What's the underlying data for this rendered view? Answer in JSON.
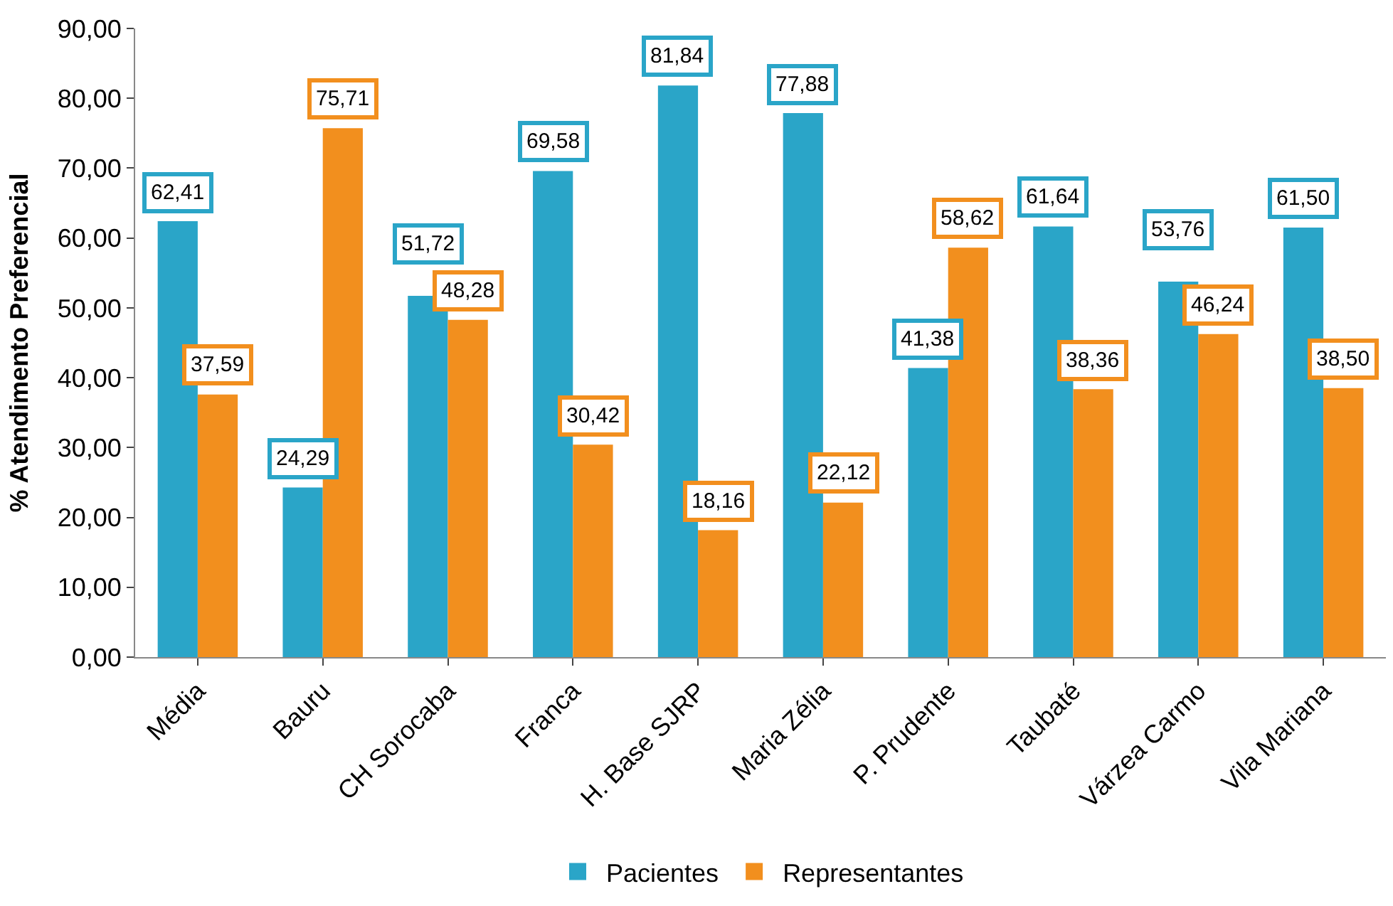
{
  "chart_data": {
    "type": "bar",
    "ylabel": "% Atendimento Preferencial",
    "categories": [
      "Média",
      "Bauru",
      "CH Sorocaba",
      "Franca",
      "H. Base SJRP",
      "Maria Zélia",
      "P. Prudente",
      "Taubaté",
      "Várzea Carmo",
      "Vila Mariana"
    ],
    "series": [
      {
        "name": "Pacientes",
        "color": "#2aa5c8",
        "values": [
          62.41,
          24.29,
          51.72,
          69.58,
          81.84,
          77.88,
          41.38,
          61.64,
          53.76,
          61.5
        ],
        "value_labels": [
          "62,41",
          "24,29",
          "51,72",
          "69,58",
          "81,84",
          "77,88",
          "41,38",
          "61,64",
          "53,76",
          "61,50"
        ]
      },
      {
        "name": "Representantes",
        "color": "#f28f1e",
        "values": [
          37.59,
          75.71,
          48.28,
          30.42,
          18.16,
          22.12,
          58.62,
          38.36,
          46.24,
          38.5
        ],
        "value_labels": [
          "37,59",
          "75,71",
          "48,28",
          "30,42",
          "18,16",
          "22,12",
          "58,62",
          "38,36",
          "46,24",
          "38,50"
        ]
      }
    ],
    "ylim": [
      0,
      90
    ],
    "yticks": [
      {
        "value": 0,
        "label": "0,00"
      },
      {
        "value": 10,
        "label": "10,00"
      },
      {
        "value": 20,
        "label": "20,00"
      },
      {
        "value": 30,
        "label": "30,00"
      },
      {
        "value": 40,
        "label": "40,00"
      },
      {
        "value": 50,
        "label": "50,00"
      },
      {
        "value": 60,
        "label": "60,00"
      },
      {
        "value": 70,
        "label": "70,00"
      },
      {
        "value": 80,
        "label": "80,00"
      },
      {
        "value": 90,
        "label": "90,00"
      }
    ],
    "legend": "bottom"
  }
}
